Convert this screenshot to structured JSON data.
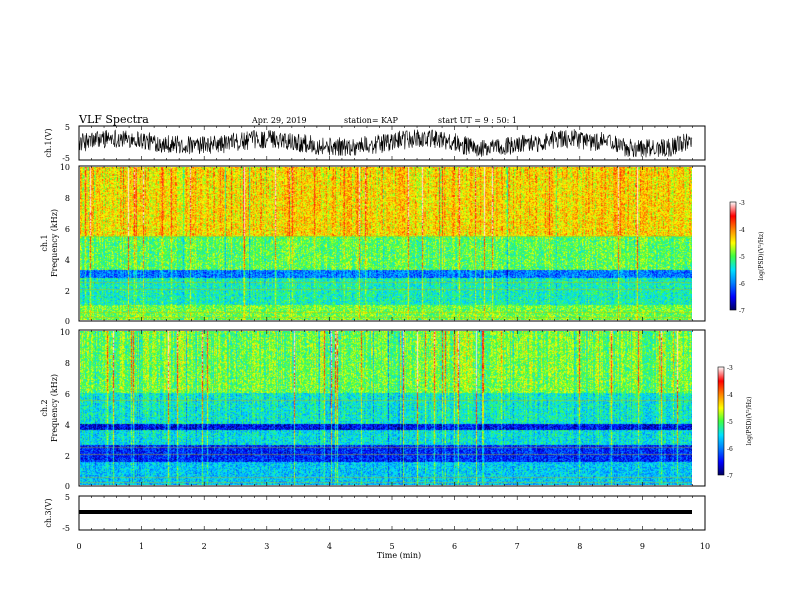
{
  "header": {
    "title": "VLF Spectra",
    "date": "Apr. 29, 2019",
    "station": "station= KAP",
    "start": "start  UT  =   9 : 50: 1"
  },
  "chart_data": [
    {
      "type": "line",
      "panel": "ch1-waveform",
      "ylabel": "ch.1(V)",
      "ylim": [
        -5,
        5
      ],
      "yticks": [
        "5",
        "-5"
      ],
      "xlim": [
        0,
        10
      ]
    },
    {
      "type": "heatmap",
      "panel": "ch1-spectrogram",
      "ylabel": "ch.1\nFrequency (kHz)",
      "ylabel_line1": "ch.1",
      "ylabel_line2": "Frequency (kHz)",
      "ylim": [
        0,
        10
      ],
      "yticks": [
        "0",
        "2",
        "4",
        "6",
        "8",
        "10"
      ],
      "xlim": [
        0,
        10
      ],
      "colorbar": {
        "label": "log(PSD)(V²/Hz)",
        "min": -7,
        "max": -3,
        "ticks": [
          "-3",
          "-4",
          "-5",
          "-6",
          "-7"
        ]
      }
    },
    {
      "type": "heatmap",
      "panel": "ch2-spectrogram",
      "ylabel_line1": "ch.2",
      "ylabel_line2": "Frequency (kHz)",
      "ylim": [
        0,
        10
      ],
      "yticks": [
        "0",
        "2",
        "4",
        "6",
        "8",
        "10"
      ],
      "xlim": [
        0,
        10
      ],
      "colorbar": {
        "label": "log(PSD)(V²/Hz)",
        "min": -7,
        "max": -3,
        "ticks": [
          "-3",
          "-4",
          "-5",
          "-6",
          "-7"
        ]
      }
    },
    {
      "type": "line",
      "panel": "ch3-waveform",
      "ylabel": "ch.3(V)",
      "ylim": [
        -5,
        5
      ],
      "yticks": [
        "5",
        "-5"
      ],
      "xlim": [
        0,
        10
      ],
      "value": 0
    }
  ],
  "xaxis": {
    "label": "Time (min)",
    "ticks": [
      "0",
      "1",
      "2",
      "3",
      "4",
      "5",
      "6",
      "7",
      "8",
      "9",
      "10"
    ]
  },
  "colorbar_ch1": {
    "label": "log(PSD)(V²/Hz)",
    "ticks": [
      "-3",
      "-4",
      "-5",
      "-6",
      "-7"
    ]
  },
  "colorbar_ch2": {
    "label": "log(PSD)(V²/Hz)",
    "ticks": [
      "-3",
      "-4",
      "-5",
      "-6",
      "-7"
    ]
  }
}
